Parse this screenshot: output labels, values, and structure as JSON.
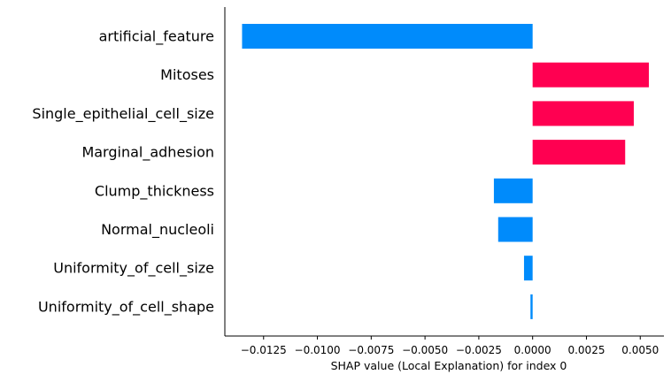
{
  "chart_data": {
    "type": "bar",
    "orientation": "horizontal",
    "title": "",
    "xlabel": "SHAP value (Local Explanation) for index 0",
    "ylabel": "",
    "xlim": [
      -0.0143,
      0.0061
    ],
    "xticks": [
      -0.0125,
      -0.01,
      -0.0075,
      -0.005,
      -0.0025,
      0.0,
      0.0025,
      0.005
    ],
    "xtick_labels": [
      "−0.0125",
      "−0.0100",
      "−0.0075",
      "−0.0050",
      "−0.0025",
      "0.0000",
      "0.0025",
      "0.0050"
    ],
    "categories": [
      "artificial_feature",
      "Mitoses",
      "Single_epithelial_cell_size",
      "Marginal_adhesion",
      "Clump_thickness",
      "Normal_nucleoli",
      "Uniformity_of_cell_size",
      "Uniformity_of_cell_shape"
    ],
    "values": [
      -0.0135,
      0.0054,
      0.0047,
      0.0043,
      -0.0018,
      -0.0016,
      -0.0004,
      -0.0001
    ],
    "colors": {
      "positive": "#ff0051",
      "negative": "#008bfb"
    },
    "grid": false,
    "legend": "none"
  }
}
